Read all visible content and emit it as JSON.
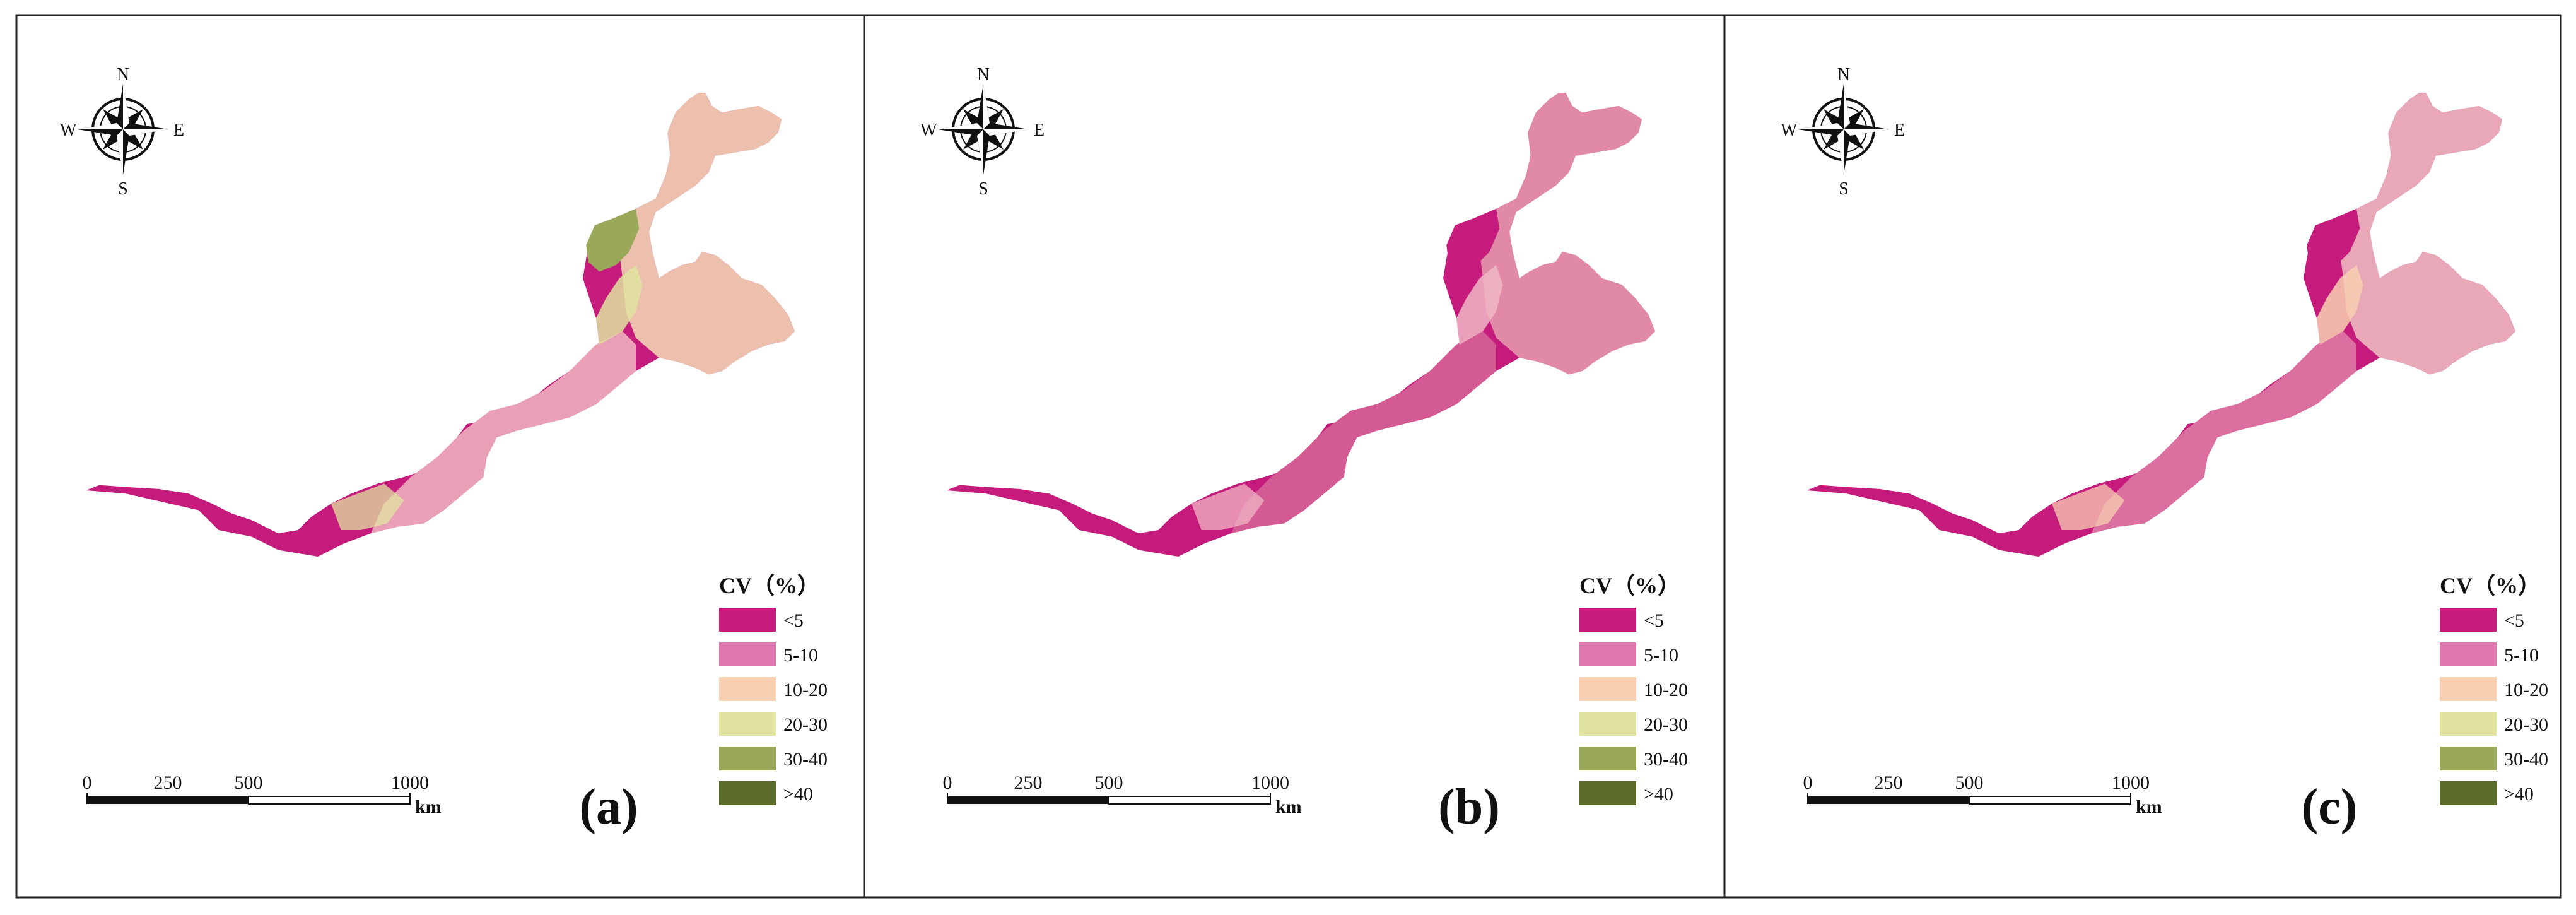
{
  "panels": [
    {
      "label": "(a)",
      "compass": {
        "n": "N",
        "e": "E",
        "s": "S",
        "w": "W"
      },
      "legend": {
        "title": "CV（%）",
        "classes": [
          {
            "label": "<5",
            "color": "#c51b7d"
          },
          {
            "label": "5-10",
            "color": "#de77ae"
          },
          {
            "label": "10-20",
            "color": "#f7cfb0"
          },
          {
            "label": "20-30",
            "color": "#e0e3a0"
          },
          {
            "label": "30-40",
            "color": "#9aa85a"
          },
          {
            "label": ">40",
            "color": "#5a6b2a"
          }
        ]
      },
      "scale": {
        "ticks": [
          "0",
          "250",
          "500",
          "1000"
        ],
        "unit": "km"
      },
      "map_palette": {
        "west": "#c51b7d",
        "middle": "#e9a0b6",
        "east": "#ecc0ac",
        "northwest_patch": "#9aa85a",
        "accent": "#e0e3a0"
      }
    },
    {
      "label": "(b)",
      "compass": {
        "n": "N",
        "e": "E",
        "s": "S",
        "w": "W"
      },
      "legend": {
        "title": "CV（%）",
        "classes": [
          {
            "label": "<5",
            "color": "#c51b7d"
          },
          {
            "label": "5-10",
            "color": "#de77ae"
          },
          {
            "label": "10-20",
            "color": "#f7cfb0"
          },
          {
            "label": "20-30",
            "color": "#e0e3a0"
          },
          {
            "label": "30-40",
            "color": "#9aa85a"
          },
          {
            "label": ">40",
            "color": "#5a6b2a"
          }
        ]
      },
      "scale": {
        "ticks": [
          "0",
          "250",
          "500",
          "1000"
        ],
        "unit": "km"
      },
      "map_palette": {
        "west": "#c51b7d",
        "middle": "#d45a94",
        "east": "#e18aa8",
        "northwest_patch": "#c51b7d",
        "accent": "#f0b7c4"
      }
    },
    {
      "label": "(c)",
      "compass": {
        "n": "N",
        "e": "E",
        "s": "S",
        "w": "W"
      },
      "legend": {
        "title": "CV（%）",
        "classes": [
          {
            "label": "<5",
            "color": "#c51b7d"
          },
          {
            "label": "5-10",
            "color": "#de77ae"
          },
          {
            "label": "10-20",
            "color": "#f7cfb0"
          },
          {
            "label": "20-30",
            "color": "#e0e3a0"
          },
          {
            "label": "30-40",
            "color": "#9aa85a"
          },
          {
            "label": ">40",
            "color": "#5a6b2a"
          }
        ]
      },
      "scale": {
        "ticks": [
          "0",
          "250",
          "500",
          "1000"
        ],
        "unit": "km"
      },
      "map_palette": {
        "west": "#c51b7d",
        "middle": "#db6f9f",
        "east": "#e8a8b8",
        "northwest_patch": "#c51b7d",
        "accent": "#f7cfb0"
      }
    }
  ]
}
